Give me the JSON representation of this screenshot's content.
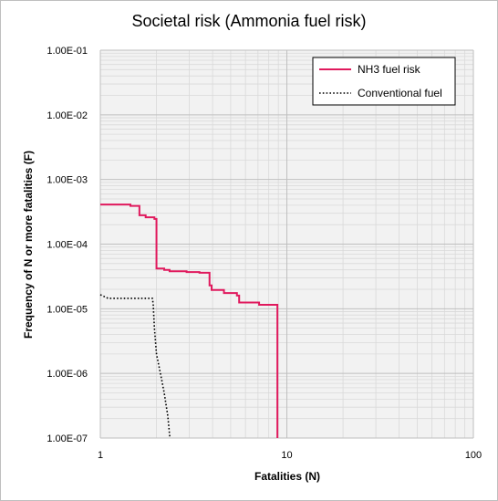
{
  "chart_data": {
    "type": "line",
    "title": "Societal risk (Ammonia fuel risk)",
    "xlabel": "Fatalities (N)",
    "ylabel": "Frequency of N or more fatalities (F)",
    "x_scale": "log",
    "y_scale": "log",
    "xlim": [
      1,
      100
    ],
    "ylim": [
      1e-07,
      0.1
    ],
    "x_ticks": [
      {
        "value": 1,
        "label": "1"
      },
      {
        "value": 10,
        "label": "10"
      },
      {
        "value": 100,
        "label": "100"
      }
    ],
    "y_ticks": [
      {
        "value": 0.1,
        "label": "1.00E-01"
      },
      {
        "value": 0.01,
        "label": "1.00E-02"
      },
      {
        "value": 0.001,
        "label": "1.00E-03"
      },
      {
        "value": 0.0001,
        "label": "1.00E-04"
      },
      {
        "value": 1e-05,
        "label": "1.00E-05"
      },
      {
        "value": 1e-06,
        "label": "1.00E-06"
      },
      {
        "value": 1e-07,
        "label": "1.00E-07"
      }
    ],
    "grid": true,
    "grid_minor": true,
    "legend_position": "top-right",
    "series": [
      {
        "name": "NH3 fuel risk",
        "color": "#e0195d",
        "style": "solid",
        "x": [
          1,
          1.45,
          1.45,
          1.62,
          1.62,
          1.75,
          1.75,
          1.95,
          1.95,
          2.0,
          2.0,
          2.2,
          2.2,
          2.35,
          2.35,
          2.9,
          2.9,
          3.4,
          3.4,
          3.85,
          3.85,
          3.95,
          3.95,
          4.6,
          4.6,
          5.4,
          5.4,
          5.55,
          5.55,
          7.1,
          7.1,
          8.9,
          8.9
        ],
        "y": [
          0.00041,
          0.00041,
          0.00039,
          0.00039,
          0.00028,
          0.00028,
          0.00026,
          0.00026,
          0.000245,
          0.000245,
          4.2e-05,
          4.2e-05,
          4e-05,
          4e-05,
          3.8e-05,
          3.8e-05,
          3.7e-05,
          3.7e-05,
          3.6e-05,
          3.6e-05,
          2.3e-05,
          2.3e-05,
          1.95e-05,
          1.95e-05,
          1.75e-05,
          1.75e-05,
          1.6e-05,
          1.6e-05,
          1.25e-05,
          1.25e-05,
          1.15e-05,
          1.15e-05,
          1e-07
        ]
      },
      {
        "name": "Conventional fuel",
        "color": "#000000",
        "style": "dotted",
        "x": [
          1,
          1.1,
          1.9,
          1.92,
          1.95,
          2.0,
          2.1,
          2.2,
          2.3,
          2.36
        ],
        "y": [
          1.65e-05,
          1.45e-05,
          1.45e-05,
          1.2e-05,
          5e-06,
          2e-06,
          1e-06,
          5e-07,
          2.2e-07,
          1e-07
        ]
      }
    ]
  }
}
